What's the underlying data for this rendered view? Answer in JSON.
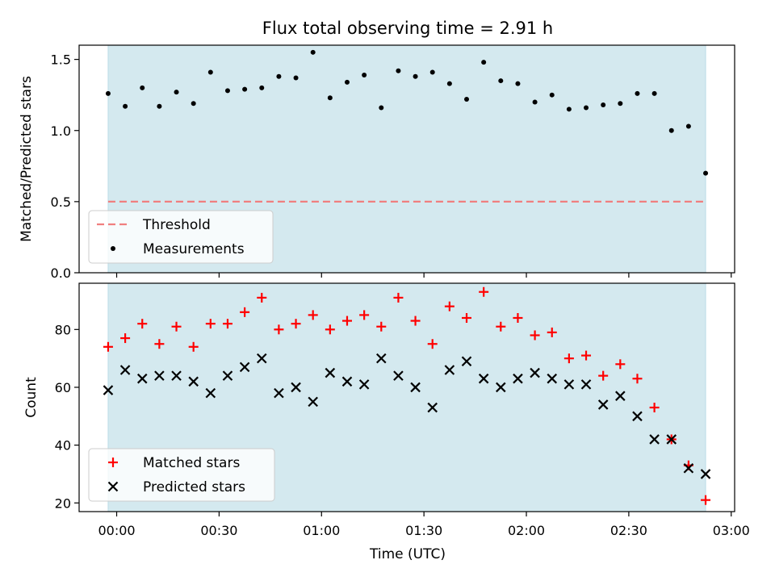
{
  "chart_data": {
    "title": "Flux total observing time = 2.91 h",
    "xlabel": "Time (UTC)",
    "x_ticks": [
      "00:00",
      "00:30",
      "01:00",
      "01:30",
      "02:00",
      "02:30",
      "03:00"
    ],
    "x_unit": "minutes after 00:00 UTC",
    "observing_window": [
      -2.5,
      172.5
    ],
    "panels": [
      {
        "type": "scatter",
        "ylabel": "Matched/Predicted stars",
        "ylim": [
          0,
          1.6
        ],
        "yticks": [
          "0.0",
          "0.5",
          "1.0",
          "1.5"
        ],
        "legend_position": "lower-left",
        "threshold": {
          "name": "Threshold",
          "value": 0.5,
          "color": "#f07f7f",
          "style": "dashed"
        },
        "series": [
          {
            "name": "Measurements",
            "color": "#000000",
            "marker": "dot",
            "x": [
              -2.5,
              2.5,
              7.5,
              12.5,
              17.5,
              22.5,
              27.5,
              32.5,
              37.5,
              42.5,
              47.5,
              52.5,
              57.5,
              62.5,
              67.5,
              72.5,
              77.5,
              82.5,
              87.5,
              92.5,
              97.5,
              102.5,
              107.5,
              112.5,
              117.5,
              122.5,
              127.5,
              132.5,
              137.5,
              142.5,
              147.5,
              152.5,
              157.5,
              162.5,
              167.5,
              172.5
            ],
            "y": [
              1.26,
              1.17,
              1.3,
              1.17,
              1.27,
              1.19,
              1.41,
              1.28,
              1.29,
              1.3,
              1.38,
              1.37,
              1.55,
              1.23,
              1.34,
              1.39,
              1.16,
              1.42,
              1.38,
              1.41,
              1.33,
              1.22,
              1.48,
              1.35,
              1.33,
              1.2,
              1.25,
              1.15,
              1.16,
              1.18,
              1.19,
              1.26,
              1.26,
              1.0,
              1.03,
              0.7
            ]
          }
        ]
      },
      {
        "type": "scatter",
        "ylabel": "Count",
        "ylim": [
          17,
          96
        ],
        "yticks": [
          "20",
          "40",
          "60",
          "80"
        ],
        "legend_position": "lower-left",
        "series": [
          {
            "name": "Matched stars",
            "color": "#ff0000",
            "marker": "plus",
            "x": [
              -2.5,
              2.5,
              7.5,
              12.5,
              17.5,
              22.5,
              27.5,
              32.5,
              37.5,
              42.5,
              47.5,
              52.5,
              57.5,
              62.5,
              67.5,
              72.5,
              77.5,
              82.5,
              87.5,
              92.5,
              97.5,
              102.5,
              107.5,
              112.5,
              117.5,
              122.5,
              127.5,
              132.5,
              137.5,
              142.5,
              147.5,
              152.5,
              157.5,
              162.5,
              167.5,
              172.5
            ],
            "y": [
              74,
              77,
              82,
              75,
              81,
              74,
              82,
              82,
              86,
              91,
              80,
              82,
              85,
              80,
              83,
              85,
              81,
              91,
              83,
              75,
              88,
              84,
              93,
              81,
              84,
              78,
              79,
              70,
              71,
              64,
              68,
              63,
              53,
              42,
              33,
              21
            ]
          },
          {
            "name": "Predicted stars",
            "color": "#000000",
            "marker": "x",
            "x": [
              -2.5,
              2.5,
              7.5,
              12.5,
              17.5,
              22.5,
              27.5,
              32.5,
              37.5,
              42.5,
              47.5,
              52.5,
              57.5,
              62.5,
              67.5,
              72.5,
              77.5,
              82.5,
              87.5,
              92.5,
              97.5,
              102.5,
              107.5,
              112.5,
              117.5,
              122.5,
              127.5,
              132.5,
              137.5,
              142.5,
              147.5,
              152.5,
              157.5,
              162.5,
              167.5,
              172.5
            ],
            "y": [
              59,
              66,
              63,
              64,
              64,
              62,
              58,
              64,
              67,
              70,
              58,
              60,
              55,
              65,
              62,
              61,
              70,
              64,
              60,
              53,
              66,
              69,
              63,
              60,
              63,
              65,
              63,
              61,
              61,
              54,
              57,
              50,
              42,
              42,
              32,
              30
            ]
          }
        ]
      }
    ],
    "colors": {
      "window": "#d4e9ef",
      "window_edge": "#bcdce6"
    }
  }
}
